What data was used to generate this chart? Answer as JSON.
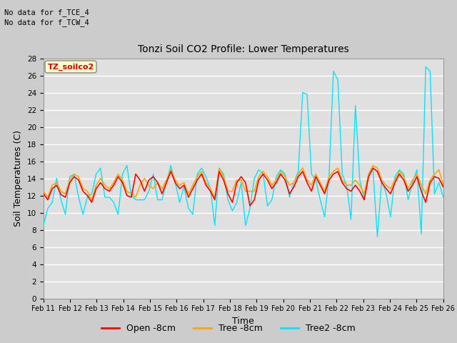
{
  "title": "Tonzi Soil CO2 Profile: Lower Temperatures",
  "xlabel": "Time",
  "ylabel": "Soil Temperatures (C)",
  "text_top_left_line1": "No data for f_TCE_4",
  "text_top_left_line2": "No data for f_TCW_4",
  "box_label": "TZ_soilco2",
  "ylim": [
    0,
    28
  ],
  "yticks": [
    0,
    2,
    4,
    6,
    8,
    10,
    12,
    14,
    16,
    18,
    20,
    22,
    24,
    26,
    28
  ],
  "legend_labels": [
    "Open -8cm",
    "Tree -8cm",
    "Tree2 -8cm"
  ],
  "line_colors": [
    "#ff0000",
    "#ffa500",
    "#00e5ff"
  ],
  "fig_bg_color": "#cccccc",
  "plot_bg_color": "#e0e0e0",
  "x_labels": [
    "Feb 11",
    "Feb 12",
    "Feb 13",
    "Feb 14",
    "Feb 15",
    "Feb 16",
    "Feb 17",
    "Feb 18",
    "Feb 19",
    "Feb 20",
    "Feb 21",
    "Feb 22",
    "Feb 23",
    "Feb 24",
    "Feb 25",
    "Feb 26"
  ],
  "open_data": [
    12.2,
    11.5,
    12.8,
    13.2,
    12.1,
    11.8,
    13.5,
    14.2,
    13.8,
    12.5,
    12.0,
    11.2,
    12.8,
    13.5,
    12.8,
    12.5,
    13.2,
    14.2,
    13.5,
    12.0,
    11.8,
    14.5,
    13.8,
    12.5,
    13.8,
    14.2,
    13.5,
    12.2,
    13.5,
    14.8,
    13.5,
    12.8,
    13.2,
    11.8,
    12.8,
    13.8,
    14.5,
    13.2,
    12.5,
    11.5,
    14.8,
    13.8,
    12.2,
    11.2,
    13.5,
    14.2,
    13.5,
    10.8,
    11.5,
    13.8,
    14.5,
    13.8,
    12.8,
    13.5,
    14.5,
    13.8,
    12.2,
    13.0,
    14.2,
    14.8,
    13.5,
    12.5,
    14.2,
    13.2,
    12.2,
    13.8,
    14.5,
    14.8,
    13.5,
    12.8,
    12.5,
    13.2,
    12.5,
    11.5,
    14.2,
    15.2,
    14.8,
    13.5,
    12.8,
    12.2,
    13.5,
    14.5,
    13.8,
    12.5,
    13.2,
    14.2,
    12.5,
    11.2,
    13.5,
    14.2,
    14.0,
    13.0
  ],
  "tree_data": [
    12.5,
    11.8,
    13.2,
    13.5,
    12.5,
    12.2,
    13.8,
    14.5,
    14.2,
    12.8,
    12.5,
    11.5,
    13.2,
    14.0,
    13.2,
    12.8,
    13.5,
    14.5,
    13.8,
    12.5,
    12.2,
    11.8,
    13.2,
    14.0,
    13.2,
    12.8,
    13.5,
    12.8,
    13.8,
    15.0,
    13.8,
    13.2,
    13.5,
    12.2,
    13.2,
    14.2,
    14.8,
    13.5,
    12.8,
    11.8,
    15.2,
    14.2,
    12.5,
    12.5,
    13.8,
    13.8,
    12.5,
    12.5,
    12.5,
    14.2,
    14.8,
    14.2,
    13.2,
    13.8,
    14.8,
    14.2,
    13.2,
    13.5,
    14.5,
    15.2,
    13.8,
    13.2,
    14.5,
    13.5,
    12.5,
    14.2,
    14.8,
    15.2,
    13.8,
    13.2,
    13.2,
    13.8,
    13.2,
    12.2,
    14.5,
    15.5,
    15.2,
    13.8,
    13.2,
    12.8,
    13.8,
    14.8,
    14.2,
    12.8,
    13.8,
    14.5,
    13.2,
    12.2,
    13.8,
    14.5,
    15.0,
    13.2
  ],
  "tree2_data": [
    8.5,
    10.5,
    11.2,
    14.0,
    11.5,
    9.8,
    14.2,
    14.5,
    11.8,
    9.8,
    11.8,
    12.2,
    14.5,
    15.2,
    11.8,
    11.8,
    11.2,
    9.8,
    14.5,
    15.5,
    12.0,
    11.5,
    11.5,
    11.5,
    12.5,
    14.5,
    11.5,
    11.5,
    13.5,
    15.5,
    13.5,
    11.2,
    13.0,
    10.5,
    9.8,
    14.5,
    15.2,
    14.2,
    12.8,
    8.5,
    15.2,
    14.5,
    11.5,
    10.2,
    11.2,
    13.5,
    8.5,
    10.5,
    14.0,
    15.0,
    14.5,
    10.8,
    11.5,
    14.2,
    15.0,
    14.5,
    11.8,
    13.5,
    14.8,
    24.0,
    23.8,
    14.5,
    13.8,
    11.5,
    9.5,
    14.2,
    26.5,
    25.5,
    14.5,
    13.2,
    9.2,
    22.5,
    13.8,
    11.5,
    14.5,
    15.0,
    7.2,
    13.8,
    12.2,
    9.5,
    14.2,
    15.0,
    14.5,
    11.5,
    13.5,
    15.0,
    7.5,
    27.0,
    26.5,
    12.2,
    13.5,
    11.8
  ]
}
